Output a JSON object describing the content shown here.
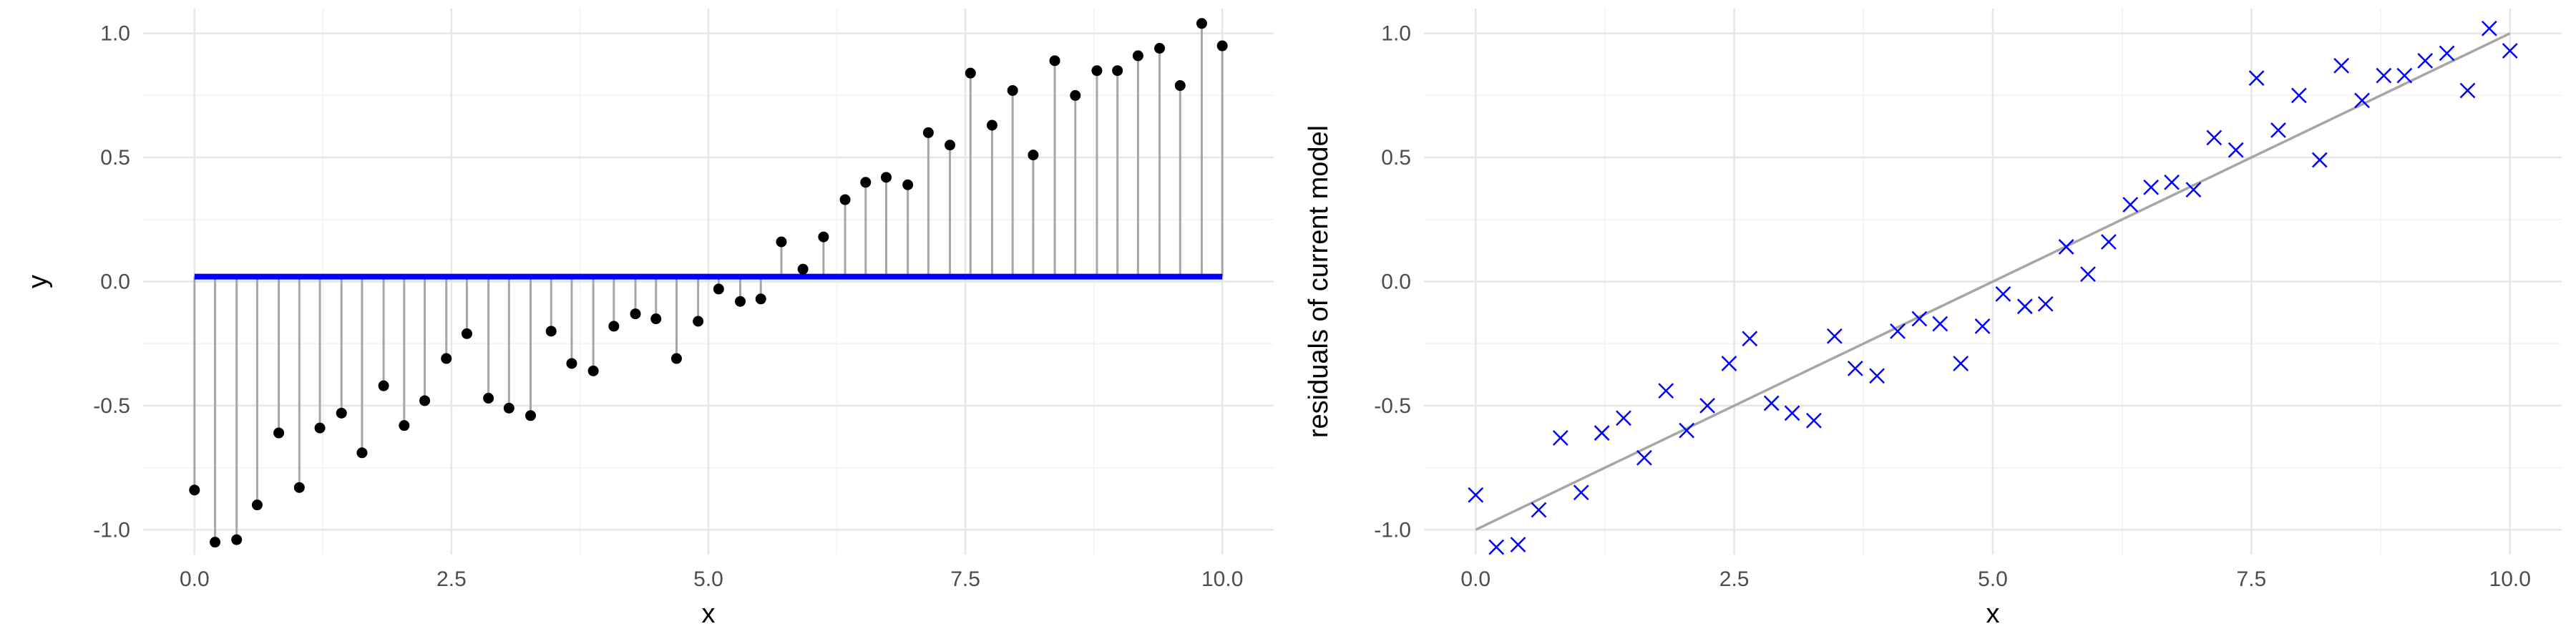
{
  "chart_data": [
    {
      "type": "scatter",
      "title": "",
      "xlabel": "x",
      "ylabel": "y",
      "xlim": [
        -0.5,
        10.5
      ],
      "ylim": [
        -1.1,
        1.1
      ],
      "x_ticks": [
        0.0,
        2.5,
        5.0,
        7.5,
        10.0
      ],
      "x_tick_labels": [
        "0.0",
        "2.5",
        "5.0",
        "7.5",
        "10.0"
      ],
      "y_ticks": [
        -1.0,
        -0.5,
        0.0,
        0.5,
        1.0
      ],
      "y_tick_labels": [
        "-1.0",
        "-0.5",
        "0.0",
        "0.5",
        "1.0"
      ],
      "grid": true,
      "baseline": 0.02,
      "colors": {
        "points": "#000000",
        "stems": "#a6a6a6",
        "baseline": "#0000ff"
      },
      "x": [
        0.0,
        0.2,
        0.41,
        0.61,
        0.82,
        1.02,
        1.22,
        1.43,
        1.63,
        1.84,
        2.04,
        2.24,
        2.45,
        2.65,
        2.86,
        3.06,
        3.27,
        3.47,
        3.67,
        3.88,
        4.08,
        4.29,
        4.49,
        4.69,
        4.9,
        5.1,
        5.31,
        5.51,
        5.71,
        5.92,
        6.12,
        6.33,
        6.53,
        6.73,
        6.94,
        7.14,
        7.35,
        7.55,
        7.76,
        7.96,
        8.16,
        8.37,
        8.57,
        8.78,
        8.98,
        9.18,
        9.39,
        9.59,
        9.8,
        10.0
      ],
      "y": [
        -0.84,
        -1.05,
        -1.04,
        -0.9,
        -0.61,
        -0.83,
        -0.59,
        -0.53,
        -0.69,
        -0.42,
        -0.58,
        -0.48,
        -0.31,
        -0.21,
        -0.47,
        -0.51,
        -0.54,
        -0.2,
        -0.33,
        -0.36,
        -0.18,
        -0.13,
        -0.15,
        -0.31,
        -0.16,
        -0.03,
        -0.08,
        -0.07,
        0.16,
        0.05,
        0.18,
        0.33,
        0.4,
        0.42,
        0.39,
        0.6,
        0.55,
        0.84,
        0.63,
        0.77,
        0.51,
        0.89,
        0.75,
        0.85,
        0.85,
        0.91,
        0.94,
        0.79,
        1.04,
        0.95
      ]
    },
    {
      "type": "scatter",
      "title": "",
      "xlabel": "x",
      "ylabel": "residuals of current model",
      "xlim": [
        -0.5,
        10.5
      ],
      "ylim": [
        -1.1,
        1.1
      ],
      "x_ticks": [
        0.0,
        2.5,
        5.0,
        7.5,
        10.0
      ],
      "x_tick_labels": [
        "0.0",
        "2.5",
        "5.0",
        "7.5",
        "10.0"
      ],
      "y_ticks": [
        -1.0,
        -0.5,
        0.0,
        0.5,
        1.0
      ],
      "y_tick_labels": [
        "-1.0",
        "-0.5",
        "0.0",
        "0.5",
        "1.0"
      ],
      "grid": true,
      "fit_line": {
        "x": [
          0.0,
          10.0
        ],
        "y": [
          -1.0,
          1.0
        ]
      },
      "colors": {
        "points": "#0000ff",
        "line": "#a6a6a6"
      },
      "x": [
        0.0,
        0.2,
        0.41,
        0.61,
        0.82,
        1.02,
        1.22,
        1.43,
        1.63,
        1.84,
        2.04,
        2.24,
        2.45,
        2.65,
        2.86,
        3.06,
        3.27,
        3.47,
        3.67,
        3.88,
        4.08,
        4.29,
        4.49,
        4.69,
        4.9,
        5.1,
        5.31,
        5.51,
        5.71,
        5.92,
        6.12,
        6.33,
        6.53,
        6.73,
        6.94,
        7.14,
        7.35,
        7.55,
        7.76,
        7.96,
        8.16,
        8.37,
        8.57,
        8.78,
        8.98,
        9.18,
        9.39,
        9.59,
        9.8,
        10.0
      ],
      "y": [
        -0.86,
        -1.07,
        -1.06,
        -0.92,
        -0.63,
        -0.85,
        -0.61,
        -0.55,
        -0.71,
        -0.44,
        -0.6,
        -0.5,
        -0.33,
        -0.23,
        -0.49,
        -0.53,
        -0.56,
        -0.22,
        -0.35,
        -0.38,
        -0.2,
        -0.15,
        -0.17,
        -0.33,
        -0.18,
        -0.05,
        -0.1,
        -0.09,
        0.14,
        0.03,
        0.16,
        0.31,
        0.38,
        0.4,
        0.37,
        0.58,
        0.53,
        0.82,
        0.61,
        0.75,
        0.49,
        0.87,
        0.73,
        0.83,
        0.83,
        0.89,
        0.92,
        0.77,
        1.02,
        0.93
      ]
    }
  ]
}
